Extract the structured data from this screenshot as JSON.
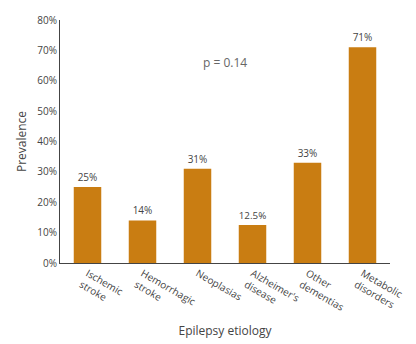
{
  "chart_data": {
    "type": "bar",
    "categories": [
      "Ischemic\nstroke",
      "Hemorrhagic\nstroke",
      "Neoplasias",
      "Alzheimer's\ndisease",
      "Other\ndementias",
      "Metabolic\ndisorders"
    ],
    "values": [
      25,
      14,
      31,
      12.5,
      33,
      71
    ],
    "value_labels": [
      "25%",
      "14%",
      "31%",
      "12.5%",
      "33%",
      "71%"
    ],
    "data_labels": true,
    "color": "#C97D12",
    "xlabel": "Epilepsy etiology",
    "ylabel": "Prevalence",
    "ylim": [
      0,
      80
    ],
    "yticks": [
      {
        "value": 0,
        "label": "0%"
      },
      {
        "value": 10,
        "label": "10%"
      },
      {
        "value": 20,
        "label": "20%"
      },
      {
        "value": 30,
        "label": "30%"
      },
      {
        "value": 40,
        "label": "40%"
      },
      {
        "value": 50,
        "label": "50%"
      },
      {
        "value": 60,
        "label": "60%"
      },
      {
        "value": 70,
        "label": "70%"
      },
      {
        "value": 80,
        "label": "80%"
      }
    ],
    "annotations": [
      {
        "text": "p = 0.14",
        "x": 2.5,
        "y": 66
      }
    ],
    "grid": false
  }
}
